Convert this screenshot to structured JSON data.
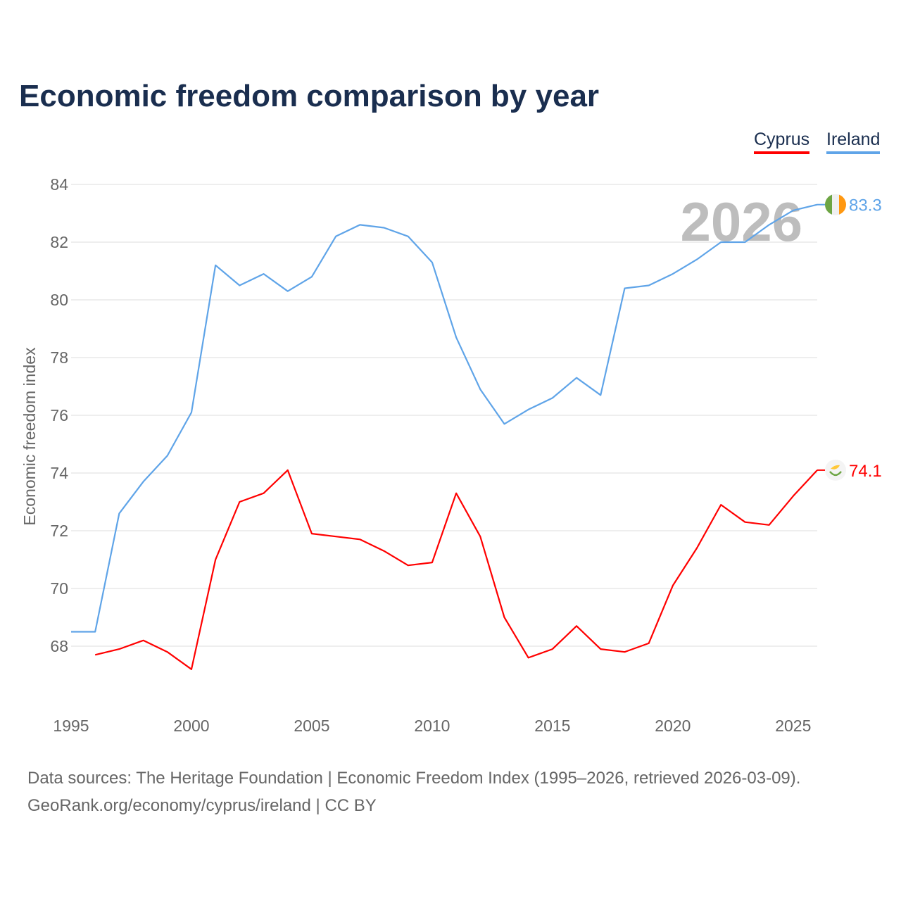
{
  "chart_data": {
    "type": "line",
    "title": "Economic freedom comparison by year",
    "xlabel": "",
    "ylabel": "Economic freedom index",
    "xlim": [
      1995,
      2026
    ],
    "ylim": [
      66,
      84
    ],
    "x_ticks": [
      "1995",
      "2000",
      "2005",
      "2010",
      "2015",
      "2020",
      "2025"
    ],
    "y_ticks": [
      "68",
      "70",
      "72",
      "74",
      "76",
      "78",
      "80",
      "82",
      "84"
    ],
    "grid": true,
    "legend_position": "top-right",
    "watermark_year": "2026",
    "series": [
      {
        "name": "Cyprus",
        "color": "#ff0000",
        "end_label": "74.1",
        "icon": "cyprus-flag-icon",
        "x": [
          1996,
          1997,
          1998,
          1999,
          2000,
          2001,
          2002,
          2003,
          2004,
          2005,
          2006,
          2007,
          2008,
          2009,
          2010,
          2011,
          2012,
          2013,
          2014,
          2015,
          2016,
          2017,
          2018,
          2019,
          2020,
          2021,
          2022,
          2023,
          2024,
          2025,
          2026
        ],
        "values": [
          67.7,
          67.9,
          68.2,
          67.8,
          67.2,
          71.0,
          73.0,
          73.3,
          74.1,
          71.9,
          71.8,
          71.7,
          71.3,
          70.8,
          70.9,
          73.3,
          71.8,
          69.0,
          67.6,
          67.9,
          68.7,
          67.9,
          67.8,
          68.1,
          70.1,
          71.4,
          72.9,
          72.3,
          72.2,
          73.2,
          74.1
        ]
      },
      {
        "name": "Ireland",
        "color": "#5fa4e8",
        "end_label": "83.3",
        "icon": "ireland-flag-icon",
        "x": [
          1995,
          1996,
          1997,
          1998,
          1999,
          2000,
          2001,
          2002,
          2003,
          2004,
          2005,
          2006,
          2007,
          2008,
          2009,
          2010,
          2011,
          2012,
          2013,
          2014,
          2015,
          2016,
          2017,
          2018,
          2019,
          2020,
          2021,
          2022,
          2023,
          2024,
          2025,
          2026
        ],
        "values": [
          68.5,
          68.5,
          72.6,
          73.7,
          74.6,
          76.1,
          81.2,
          80.5,
          80.9,
          80.3,
          80.8,
          82.2,
          82.6,
          82.5,
          82.2,
          81.3,
          78.7,
          76.9,
          75.7,
          76.2,
          76.6,
          77.3,
          76.7,
          80.4,
          80.5,
          80.9,
          81.4,
          82.0,
          82.0,
          82.6,
          83.1,
          83.3
        ]
      }
    ]
  },
  "footer": {
    "line1": "Data sources: The Heritage Foundation | Economic Freedom Index (1995–2026, retrieved 2026-03-09).",
    "line2": "GeoRank.org/economy/cyprus/ireland | CC BY"
  }
}
